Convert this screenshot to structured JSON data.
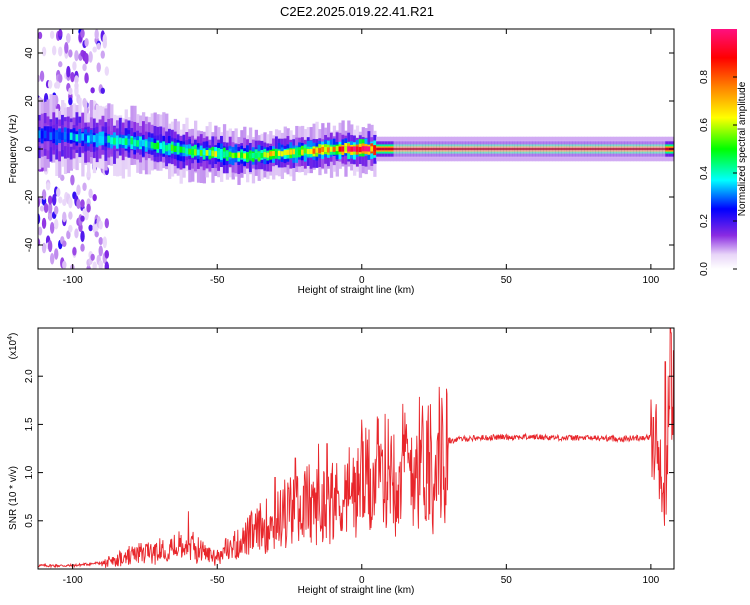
{
  "figure": {
    "title": "C2E2.2025.019.22.41.R21"
  },
  "chart_data": [
    {
      "type": "heatmap",
      "xlabel": "Height of straight line (km)",
      "ylabel": "Frequency (Hz)",
      "xlim": [
        -112,
        108
      ],
      "ylim": [
        -50,
        50
      ],
      "x_ticks": [
        -100,
        -50,
        0,
        50,
        100
      ],
      "y_ticks": [
        -40,
        -20,
        0,
        20,
        40
      ],
      "x_tick_labels": [
        "-100",
        "-50",
        "0",
        "50",
        "100"
      ],
      "y_tick_labels": [
        "-40",
        "-20",
        "0",
        "20",
        "40"
      ],
      "grid": false,
      "ridge": {
        "description_points_x": [
          -112,
          -100,
          -90,
          -80,
          -70,
          -60,
          -50,
          -40,
          -30,
          -20,
          -10,
          0,
          10,
          50,
          100,
          108
        ],
        "frequency_hz": [
          6,
          5,
          4,
          3,
          1,
          -1,
          -2,
          -3,
          -2,
          -1,
          0,
          0,
          0,
          0,
          0,
          0
        ]
      },
      "colorbar": {
        "label": "Normalized spectral amplitude",
        "range": [
          0,
          1
        ],
        "ticks": [
          0.0,
          0.2,
          0.4,
          0.6,
          0.8
        ],
        "tick_labels": [
          "0.0",
          "0.2",
          "0.4",
          "0.6",
          "0.8"
        ],
        "colormap": [
          "#ffffff",
          "#8a2be2",
          "#0000ff",
          "#00ffff",
          "#00ff00",
          "#ffff00",
          "#ff8000",
          "#ff0000",
          "#ff0080"
        ]
      }
    },
    {
      "type": "line",
      "xlabel": "Height of straight line (km)",
      "ylabel": "SNR (10 * v/v)",
      "y_multiplier": "(x10",
      "y_multiplier_exp": "4",
      "y_multiplier_close": ")",
      "xlim": [
        -112,
        108
      ],
      "ylim": [
        0,
        2.5
      ],
      "x_ticks": [
        -100,
        -50,
        0,
        50,
        100
      ],
      "y_ticks": [
        0.5,
        1.0,
        1.5,
        2.0
      ],
      "x_tick_labels": [
        "-100",
        "-50",
        "0",
        "50",
        "100"
      ],
      "y_tick_labels": [
        "0.5",
        "1.0",
        "1.5",
        "2.0"
      ],
      "grid": false,
      "series": [
        {
          "color": "#e8262b",
          "x": [
            -112,
            -100,
            -90,
            -85,
            -80,
            -75,
            -70,
            -65,
            -60,
            -55,
            -50,
            -45,
            -40,
            -35,
            -30,
            -25,
            -20,
            -15,
            -10,
            -5,
            0,
            5,
            10,
            15,
            20,
            25,
            30,
            35,
            40,
            50,
            60,
            70,
            80,
            90,
            95,
            100,
            103,
            105,
            106,
            107,
            108
          ],
          "values": [
            0.02,
            0.02,
            0.05,
            0.1,
            0.15,
            0.2,
            0.22,
            0.25,
            0.28,
            0.2,
            0.15,
            0.25,
            0.35,
            0.45,
            0.6,
            0.65,
            0.75,
            0.7,
            0.8,
            0.85,
            0.95,
            1.05,
            1.15,
            1.22,
            1.27,
            1.3,
            1.33,
            1.35,
            1.36,
            1.37,
            1.37,
            1.36,
            1.36,
            1.35,
            1.36,
            1.37,
            1.2,
            0.4,
            1.5,
            2.3,
            1.6
          ]
        }
      ],
      "spikes": [
        {
          "x": -60,
          "value": 0.6
        },
        {
          "x": -30,
          "value": 0.95
        },
        {
          "x": -23,
          "value": 1.15
        },
        {
          "x": -15,
          "value": 1.3
        },
        {
          "x": -12,
          "value": 1.3
        },
        {
          "x": 0,
          "value": 1.55
        },
        {
          "x": 5,
          "value": 1.1
        },
        {
          "x": 10,
          "value": 1.28
        },
        {
          "x": 105,
          "value": 2.15
        },
        {
          "x": 107,
          "value": 2.45
        }
      ]
    }
  ]
}
